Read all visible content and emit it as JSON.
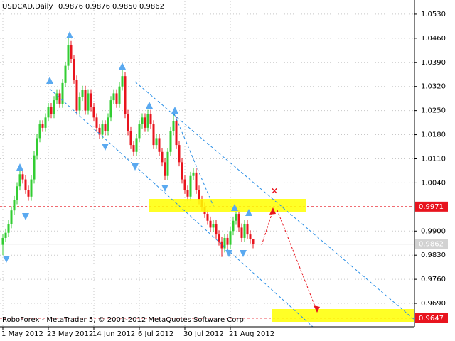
{
  "chart_data": {
    "type": "candlestick",
    "title": "USDCAD,Daily",
    "last_bar_labels": [
      "0.9876",
      "0.9876",
      "0.9850",
      "0.9862"
    ],
    "footer": "RoboForex - MetaTrader 5, © 2001-2012 MetaQuotes Software Corp.",
    "categories": [
      "1 May 2012",
      null,
      null,
      null,
      null,
      null,
      null,
      null,
      null,
      null,
      null,
      null,
      null,
      null,
      null,
      null,
      "23 May 2012",
      null,
      null,
      null,
      null,
      null,
      null,
      null,
      null,
      null,
      null,
      null,
      null,
      null,
      null,
      null,
      "14 Jun 2012",
      null,
      null,
      null,
      null,
      null,
      null,
      null,
      null,
      null,
      null,
      null,
      null,
      null,
      null,
      null,
      "6 Jul 2012",
      null,
      null,
      null,
      null,
      null,
      null,
      null,
      null,
      null,
      null,
      null,
      null,
      null,
      null,
      null,
      "30 Jul 2012",
      null,
      null,
      null,
      null,
      null,
      null,
      null,
      null,
      null,
      null,
      null,
      null,
      null,
      null,
      null,
      "21 Aug 2012",
      null,
      null,
      null,
      null,
      null,
      null,
      null,
      null
    ],
    "open": [
      0.986,
      0.988,
      0.9895,
      0.992,
      0.996,
      0.999,
      1.003,
      1.0065,
      1.005,
      1.002,
      1.0,
      1.005,
      1.012,
      1.017,
      1.021,
      1.02,
      1.023,
      1.026,
      1.024,
      1.028,
      1.03,
      1.027,
      1.033,
      1.038,
      1.044,
      1.04,
      1.034,
      1.025,
      1.029,
      1.031,
      1.025,
      1.03,
      1.026,
      1.023,
      1.02,
      1.018,
      1.021,
      1.019,
      1.023,
      1.028,
      1.03,
      1.027,
      1.032,
      1.035,
      1.024,
      1.019,
      1.015,
      1.013,
      1.017,
      1.021,
      1.023,
      1.02,
      1.024,
      1.021,
      1.015,
      1.017,
      1.013,
      1.01,
      1.006,
      1.013,
      1.019,
      1.022,
      1.015,
      1.01,
      1.005,
      1.002,
      1.0,
      1.006,
      1.007,
      1.002,
      0.999,
      0.997,
      0.995,
      0.993,
      0.991,
      0.992,
      0.989,
      0.987,
      0.985,
      0.988,
      0.986,
      0.99,
      0.993,
      0.995,
      0.991,
      0.988,
      0.992,
      0.989,
      0.9876
    ],
    "high": [
      0.9892,
      0.9907,
      0.9932,
      0.9972,
      1.0002,
      1.0042,
      1.0077,
      1.0077,
      1.0062,
      1.0032,
      1.0062,
      1.0132,
      1.0182,
      1.0222,
      1.0222,
      1.0242,
      1.0272,
      1.0272,
      1.0292,
      1.0312,
      1.0312,
      1.0342,
      1.0392,
      1.046,
      1.0452,
      1.0412,
      1.0352,
      1.0302,
      1.0322,
      1.0322,
      1.0312,
      1.0312,
      1.0272,
      1.0242,
      1.0212,
      1.0222,
      1.0222,
      1.0242,
      1.0292,
      1.0312,
      1.0312,
      1.0332,
      1.0375,
      1.0362,
      1.0252,
      1.0202,
      1.0162,
      1.0182,
      1.0222,
      1.0242,
      1.0242,
      1.0252,
      1.0252,
      1.0222,
      1.0182,
      1.0182,
      1.0142,
      1.0112,
      1.0142,
      1.0202,
      1.0245,
      1.0232,
      1.0162,
      1.0112,
      1.0062,
      1.0032,
      1.0072,
      1.0082,
      1.0082,
      1.0032,
      1.0002,
      0.9982,
      0.9962,
      0.9942,
      0.9932,
      0.9932,
      0.9902,
      0.9882,
      0.9892,
      0.9892,
      0.9912,
      0.9942,
      0.9962,
      0.9962,
      0.9922,
      0.9932,
      0.9932,
      0.9902,
      0.9876
    ],
    "low": [
      0.983,
      0.9868,
      0.9883,
      0.9908,
      0.9948,
      0.9978,
      1.0018,
      1.0038,
      1.0008,
      0.9988,
      0.9988,
      1.0038,
      1.0108,
      1.0158,
      1.0188,
      1.0188,
      1.0218,
      1.0228,
      1.0228,
      1.0268,
      1.0258,
      1.0258,
      1.0318,
      1.0368,
      1.0388,
      1.0328,
      1.0238,
      1.0238,
      1.0278,
      1.0238,
      1.0238,
      1.0248,
      1.0218,
      1.0188,
      1.0168,
      1.0168,
      1.0178,
      1.0178,
      1.0218,
      1.0268,
      1.0258,
      1.0258,
      1.0308,
      1.0228,
      1.0178,
      1.0138,
      1.0118,
      1.0118,
      1.0158,
      1.0198,
      1.0188,
      1.0188,
      1.0198,
      1.0138,
      1.0138,
      1.0118,
      1.0088,
      1.0048,
      1.0048,
      1.0118,
      1.0178,
      1.0138,
      1.0088,
      1.0038,
      1.0008,
      0.9988,
      0.9988,
      1.0048,
      1.0008,
      0.9978,
      0.9958,
      0.9938,
      0.9918,
      0.9898,
      0.9898,
      0.9878,
      0.9858,
      0.9825,
      0.9838,
      0.9848,
      0.9848,
      0.9888,
      0.9918,
      0.9898,
      0.9868,
      0.9868,
      0.9878,
      0.9864,
      0.985
    ],
    "close": [
      0.988,
      0.9895,
      0.992,
      0.996,
      0.999,
      1.003,
      1.0065,
      1.005,
      1.002,
      1.0,
      1.005,
      1.012,
      1.017,
      1.021,
      1.02,
      1.023,
      1.026,
      1.024,
      1.028,
      1.03,
      1.027,
      1.033,
      1.038,
      1.044,
      1.04,
      1.034,
      1.025,
      1.029,
      1.031,
      1.025,
      1.03,
      1.026,
      1.023,
      1.02,
      1.018,
      1.021,
      1.019,
      1.023,
      1.028,
      1.03,
      1.027,
      1.032,
      1.035,
      1.024,
      1.019,
      1.015,
      1.013,
      1.017,
      1.021,
      1.023,
      1.02,
      1.024,
      1.021,
      1.015,
      1.017,
      1.013,
      1.01,
      1.006,
      1.013,
      1.019,
      1.022,
      1.015,
      1.01,
      1.005,
      1.002,
      1.0,
      1.006,
      1.007,
      1.002,
      0.999,
      0.997,
      0.995,
      0.993,
      0.991,
      0.992,
      0.989,
      0.987,
      0.985,
      0.988,
      0.986,
      0.99,
      0.993,
      0.995,
      0.991,
      0.988,
      0.992,
      0.989,
      0.9876,
      0.9862
    ],
    "up_color": "#32cd32",
    "down_color": "#e8141e",
    "ylim": [
      0.9622,
      1.0567
    ],
    "yticks": [
      {
        "value": 1.053,
        "label": "1.0530"
      },
      {
        "value": 1.046,
        "label": "1.0460"
      },
      {
        "value": 1.039,
        "label": "1.0390"
      },
      {
        "value": 1.032,
        "label": "1.0320"
      },
      {
        "value": 1.025,
        "label": "1.0250"
      },
      {
        "value": 1.018,
        "label": "1.0180"
      },
      {
        "value": 1.011,
        "label": "1.0110"
      },
      {
        "value": 1.004,
        "label": "1.0040"
      },
      {
        "value": 0.99,
        "label": "0.9900"
      },
      {
        "value": 0.983,
        "label": "0.9830"
      },
      {
        "value": 0.976,
        "label": "0.9760"
      },
      {
        "value": 0.969,
        "label": "0.9690"
      }
    ],
    "levels": [
      {
        "value": 0.9971,
        "color": "#e8141e"
      },
      {
        "value": 0.9647,
        "color": "#e8141e"
      }
    ],
    "grid": true
  }
}
